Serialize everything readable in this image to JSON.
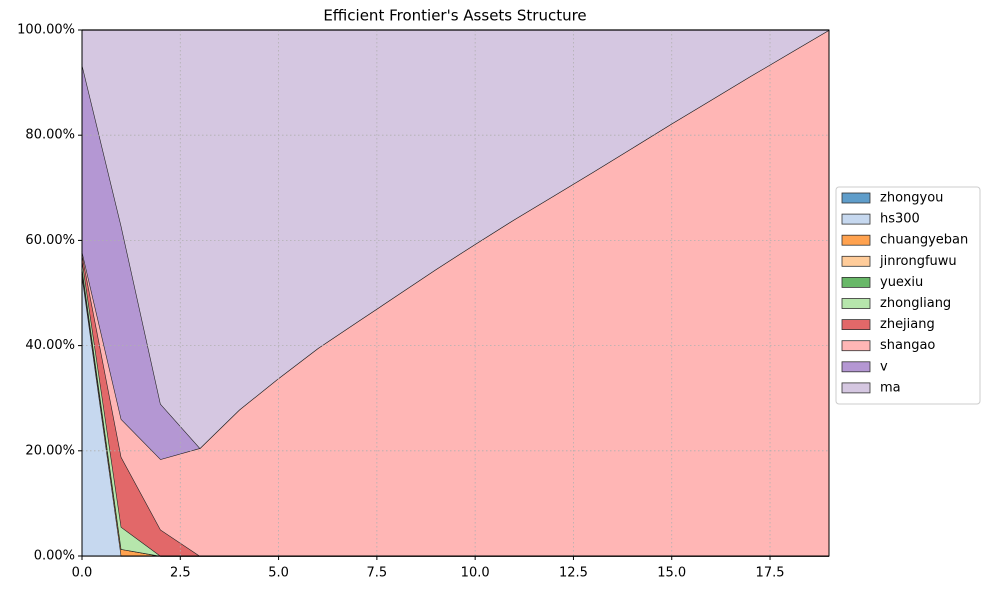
{
  "chart_data": {
    "type": "stacked_area",
    "title": "Efficient Frontier's Assets Structure",
    "x": [
      0,
      1,
      2,
      3,
      4,
      5,
      6,
      7,
      8,
      9,
      10,
      11,
      12,
      13,
      14,
      15,
      16,
      17,
      18,
      19
    ],
    "xlim": [
      0,
      19
    ],
    "xticks": [
      {
        "value": 0,
        "label": "0.0"
      },
      {
        "value": 2.5,
        "label": "2.5"
      },
      {
        "value": 5,
        "label": "5.0"
      },
      {
        "value": 7.5,
        "label": "7.5"
      },
      {
        "value": 10,
        "label": "10.0"
      },
      {
        "value": 12.5,
        "label": "12.5"
      },
      {
        "value": 15,
        "label": "15.0"
      },
      {
        "value": 17.5,
        "label": "17.5"
      }
    ],
    "ylim": [
      0,
      100
    ],
    "yticks": [
      {
        "value": 0,
        "label": "0.00%"
      },
      {
        "value": 20,
        "label": "20.00%"
      },
      {
        "value": 40,
        "label": "40.00%"
      },
      {
        "value": 60,
        "label": "60.00%"
      },
      {
        "value": 80,
        "label": "80.00%"
      },
      {
        "value": 100,
        "label": "100.00%"
      }
    ],
    "grid": true,
    "legend": "right",
    "series": [
      {
        "name": "zhongyou",
        "color": "#5f9dca",
        "values": [
          0,
          0,
          0,
          0,
          0,
          0,
          0,
          0,
          0,
          0,
          0,
          0,
          0,
          0,
          0,
          0,
          0,
          0,
          0,
          0
        ]
      },
      {
        "name": "hs300",
        "color": "#c6d8ef",
        "values": [
          53.5,
          0,
          0,
          0,
          0,
          0,
          0,
          0,
          0,
          0,
          0,
          0,
          0,
          0,
          0,
          0,
          0,
          0,
          0,
          0
        ]
      },
      {
        "name": "chuangyeban",
        "color": "#ffa24f",
        "values": [
          0.5,
          1.3,
          0,
          0,
          0,
          0,
          0,
          0,
          0,
          0,
          0,
          0,
          0,
          0,
          0,
          0,
          0,
          0,
          0,
          0
        ]
      },
      {
        "name": "jinrongfuwu",
        "color": "#ffcc9a",
        "values": [
          0.5,
          0,
          0,
          0,
          0,
          0,
          0,
          0,
          0,
          0,
          0,
          0,
          0,
          0,
          0,
          0,
          0,
          0,
          0,
          0
        ]
      },
      {
        "name": "yuexiu",
        "color": "#68b868",
        "values": [
          0.5,
          0,
          0,
          0,
          0,
          0,
          0,
          0,
          0,
          0,
          0,
          0,
          0,
          0,
          0,
          0,
          0,
          0,
          0,
          0
        ]
      },
      {
        "name": "zhongliang",
        "color": "#b6e6ac",
        "values": [
          1.5,
          4.2,
          0,
          0,
          0,
          0,
          0,
          0,
          0,
          0,
          0,
          0,
          0,
          0,
          0,
          0,
          0,
          0,
          0,
          0
        ]
      },
      {
        "name": "zhejiang",
        "color": "#e26869",
        "values": [
          1,
          13.3,
          5,
          0,
          0,
          0,
          0,
          0,
          0,
          0,
          0,
          0,
          0,
          0,
          0,
          0,
          0,
          0,
          0,
          0
        ]
      },
      {
        "name": "shangao",
        "color": "#ffb6b5",
        "values": [
          0.5,
          7.2,
          13.4,
          20.5,
          27.8,
          33.8,
          39.5,
          44.5,
          49.5,
          54.5,
          59.3,
          64,
          68.5,
          73,
          77.6,
          82.2,
          86.7,
          91.2,
          95.6,
          100
        ]
      },
      {
        "name": "v",
        "color": "#b497d3",
        "values": [
          35.5,
          36.7,
          10.5,
          0,
          0,
          0,
          0,
          0,
          0,
          0,
          0,
          0,
          0,
          0,
          0,
          0,
          0,
          0,
          0,
          0
        ]
      },
      {
        "name": "ma",
        "color": "#d5c7e1",
        "values": [
          6.5,
          37.3,
          71.1,
          79.5,
          72.2,
          66.2,
          60.5,
          55.5,
          50.5,
          45.5,
          40.7,
          36,
          31.5,
          27,
          22.4,
          17.8,
          13.3,
          8.8,
          4.4,
          0
        ]
      }
    ]
  }
}
